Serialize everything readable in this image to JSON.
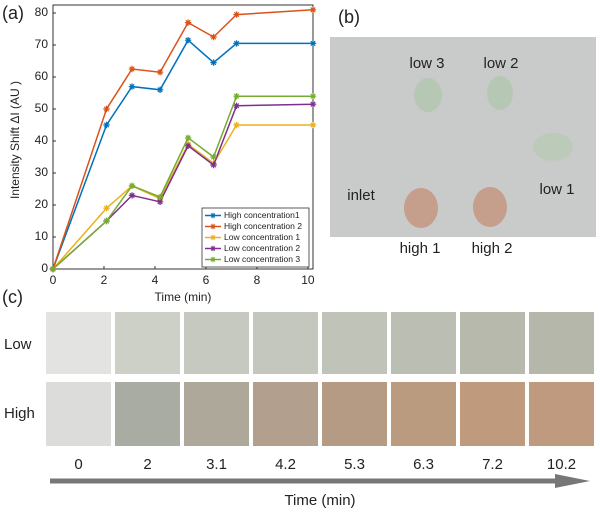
{
  "chart_data": {
    "type": "line",
    "panel_label": "(a)",
    "x_label": "Time (min)",
    "y_label": "Intensity Shift  ΔI  (AU )",
    "x": [
      0,
      2.1,
      3.1,
      4.2,
      5.3,
      6.3,
      7.2,
      10.2
    ],
    "series": [
      {
        "name": "High concentration1",
        "color": "#0072bd",
        "values": [
          0,
          45,
          57,
          56,
          71.5,
          64.5,
          70.5,
          70.5
        ]
      },
      {
        "name": "High concentration 2",
        "color": "#d95319",
        "values": [
          0,
          50,
          62.5,
          61.5,
          77,
          72.5,
          79.5,
          81
        ]
      },
      {
        "name": "Low concentration 1",
        "color": "#edb120",
        "values": [
          0,
          19,
          26,
          22,
          39,
          33,
          45,
          45
        ]
      },
      {
        "name": "Low concentration 2",
        "color": "#7e2f8e",
        "values": [
          0,
          15,
          23,
          21,
          38.5,
          32.5,
          51,
          51.5
        ]
      },
      {
        "name": "Low concentration 3",
        "color": "#77ac30",
        "values": [
          0,
          15,
          26,
          22.5,
          41,
          35,
          54,
          54
        ]
      }
    ],
    "xlim": [
      0,
      10.2
    ],
    "xticks": [
      0,
      2,
      4,
      6,
      8,
      10
    ],
    "ylim": [
      0,
      82.5
    ],
    "yticks": [
      0,
      10,
      20,
      30,
      40,
      50,
      60,
      70,
      80
    ],
    "legend": "lower right",
    "grid": false
  },
  "panel_b": {
    "label": "(b)",
    "spots": [
      "low 3",
      "low 2",
      "low 1",
      "inlet",
      "high 1",
      "high 2"
    ]
  },
  "panel_c": {
    "label": "(c)",
    "rows": [
      "Low",
      "High"
    ],
    "times": [
      "0",
      "2",
      "3.1",
      "4.2",
      "5.3",
      "6.3",
      "7.2",
      "10.2"
    ],
    "axis_label": "Time (min)"
  }
}
